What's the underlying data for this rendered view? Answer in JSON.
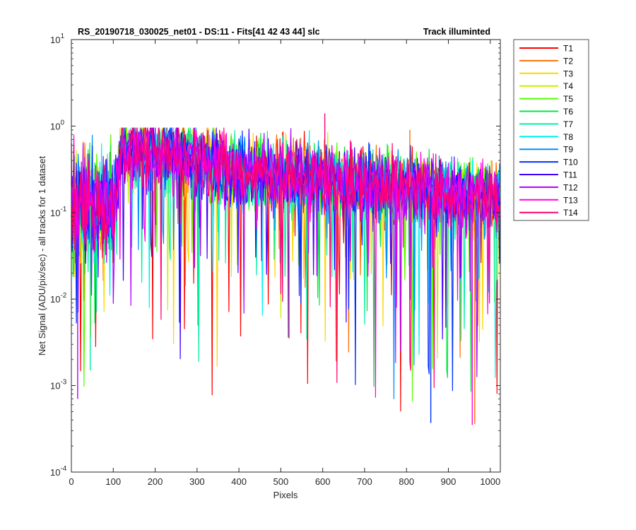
{
  "chart_data": {
    "type": "line",
    "title": "RS_20190718_030025_net01 - DS:11 - Fits[41  42  43  44]   slc",
    "subtitle": "Track illuminted",
    "xlabel": "Pixels",
    "ylabel": "Net Signal (ADU/pix/sec) - all tracks for 1 dataset",
    "xlim": [
      0,
      1024
    ],
    "ylim": [
      0.0001,
      10
    ],
    "yscale": "log",
    "grid": false,
    "legend_position": "outside-top-right",
    "x_ticks": [
      "0",
      "100",
      "200",
      "300",
      "400",
      "500",
      "600",
      "700",
      "800",
      "900",
      "1000"
    ],
    "x_tick_values": [
      0,
      100,
      200,
      300,
      400,
      500,
      600,
      700,
      800,
      900,
      1000
    ],
    "y_tick_exponents": [
      "-4",
      "-3",
      "-2",
      "-1",
      "0",
      "1"
    ],
    "y_tick_values": [
      0.0001,
      0.001,
      0.01,
      0.1,
      1,
      10
    ],
    "envelope": {
      "description": "approximate typical level per pixel range",
      "x": [
        0,
        100,
        120,
        200,
        300,
        400,
        500,
        600,
        700,
        800,
        900,
        1024
      ],
      "y": [
        0.12,
        0.12,
        0.55,
        0.5,
        0.42,
        0.32,
        0.28,
        0.25,
        0.22,
        0.2,
        0.16,
        0.15
      ]
    },
    "series": [
      {
        "name": "T1",
        "color": "#ff0000"
      },
      {
        "name": "T2",
        "color": "#ff7000"
      },
      {
        "name": "T3",
        "color": "#ffd700"
      },
      {
        "name": "T4",
        "color": "#c8f000"
      },
      {
        "name": "T5",
        "color": "#55ff00"
      },
      {
        "name": "T6",
        "color": "#00e840"
      },
      {
        "name": "T7",
        "color": "#00f0a0"
      },
      {
        "name": "T8",
        "color": "#00f0f0"
      },
      {
        "name": "T9",
        "color": "#0090ff"
      },
      {
        "name": "T10",
        "color": "#0030ff"
      },
      {
        "name": "T11",
        "color": "#4000ff"
      },
      {
        "name": "T12",
        "color": "#b000ff"
      },
      {
        "name": "T13",
        "color": "#ff00e0"
      },
      {
        "name": "T14",
        "color": "#ff0070"
      }
    ],
    "notable_spikes": [
      {
        "x": 605,
        "y": 1.4
      },
      {
        "x": 808,
        "y": 0.9
      },
      {
        "x": 520,
        "y": 0.0035
      },
      {
        "x": 858,
        "y": 0.00037
      },
      {
        "x": 963,
        "y": 0.00036
      },
      {
        "x": 957,
        "y": 0.00035
      },
      {
        "x": 15,
        "y": 0.0007
      },
      {
        "x": 45,
        "y": 0.0015
      }
    ]
  }
}
